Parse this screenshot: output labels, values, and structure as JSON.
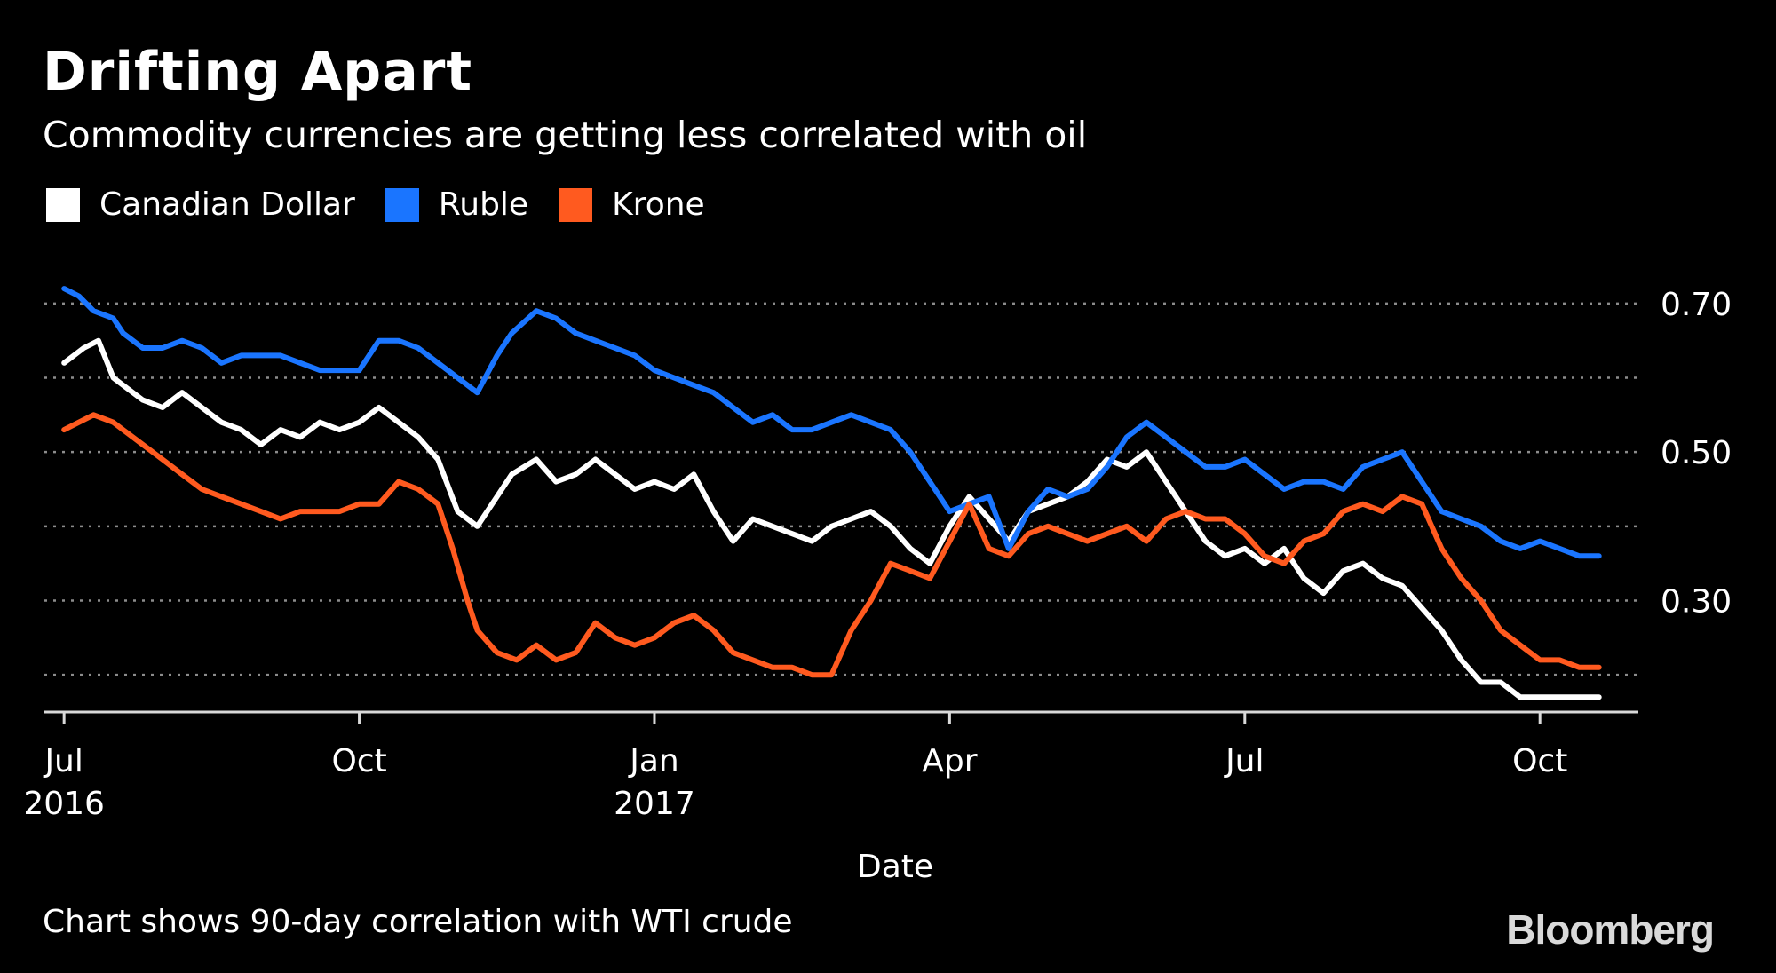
{
  "title": "Drifting Apart",
  "subtitle": "Commodity currencies are getting less correlated with oil",
  "footnote": "Chart shows 90-day correlation with WTI crude",
  "brand": "Bloomberg",
  "colors": {
    "background": "#000000",
    "cad": "#ffffff",
    "ruble": "#1a75ff",
    "krone": "#ff5a1f",
    "grid": "#8c8c8c"
  },
  "chart_data": {
    "type": "line",
    "title": "Drifting Apart",
    "subtitle": "Commodity currencies are getting less correlated with oil",
    "xlabel": "Date",
    "ylabel": "",
    "ylim": [
      0.15,
      0.75
    ],
    "xlim": [
      -0.2,
      16.0
    ],
    "yticks": [
      0.2,
      0.3,
      0.4,
      0.5,
      0.6,
      0.7
    ],
    "yticklabels": [
      {
        "value": 0.7,
        "label": "0.70"
      },
      {
        "value": 0.5,
        "label": "0.50"
      },
      {
        "value": 0.3,
        "label": "0.30"
      }
    ],
    "xticks": [
      {
        "pos": 0,
        "label": "Jul",
        "sub": "2016"
      },
      {
        "pos": 3,
        "label": "Oct",
        "sub": ""
      },
      {
        "pos": 6,
        "label": "Jan",
        "sub": "2017"
      },
      {
        "pos": 9,
        "label": "Apr",
        "sub": ""
      },
      {
        "pos": 12,
        "label": "Jul",
        "sub": ""
      },
      {
        "pos": 15,
        "label": "Oct",
        "sub": ""
      }
    ],
    "grid": "horizontal dotted",
    "legend_position": "top-left",
    "series": [
      {
        "name": "Canadian Dollar",
        "color": "#ffffff",
        "x": [
          0.0,
          0.2,
          0.35,
          0.5,
          0.6,
          0.8,
          1.0,
          1.2,
          1.4,
          1.6,
          1.8,
          2.0,
          2.2,
          2.4,
          2.6,
          2.8,
          3.0,
          3.2,
          3.4,
          3.6,
          3.8,
          4.0,
          4.2,
          4.4,
          4.55,
          4.8,
          5.0,
          5.2,
          5.4,
          5.6,
          5.8,
          6.0,
          6.2,
          6.4,
          6.6,
          6.8,
          7.0,
          7.2,
          7.4,
          7.6,
          7.8,
          8.0,
          8.2,
          8.4,
          8.6,
          8.8,
          9.0,
          9.2,
          9.4,
          9.6,
          9.8,
          10.0,
          10.2,
          10.4,
          10.6,
          10.8,
          11.0,
          11.2,
          11.4,
          11.6,
          11.8,
          12.0,
          12.2,
          12.4,
          12.6,
          12.8,
          13.0,
          13.2,
          13.4,
          13.6,
          13.8,
          14.0,
          14.2,
          14.4,
          14.6,
          14.8,
          15.0,
          15.2,
          15.4,
          15.6
        ],
        "values": [
          0.62,
          0.64,
          0.65,
          0.6,
          0.59,
          0.57,
          0.56,
          0.58,
          0.56,
          0.54,
          0.53,
          0.51,
          0.53,
          0.52,
          0.54,
          0.53,
          0.54,
          0.56,
          0.54,
          0.52,
          0.49,
          0.42,
          0.4,
          0.44,
          0.47,
          0.49,
          0.46,
          0.47,
          0.49,
          0.47,
          0.45,
          0.46,
          0.45,
          0.47,
          0.42,
          0.38,
          0.41,
          0.4,
          0.39,
          0.38,
          0.4,
          0.41,
          0.42,
          0.4,
          0.37,
          0.35,
          0.4,
          0.44,
          0.41,
          0.38,
          0.42,
          0.43,
          0.44,
          0.46,
          0.49,
          0.48,
          0.5,
          0.46,
          0.42,
          0.38,
          0.36,
          0.37,
          0.35,
          0.37,
          0.33,
          0.31,
          0.34,
          0.35,
          0.33,
          0.32,
          0.29,
          0.26,
          0.22,
          0.19,
          0.19,
          0.17,
          0.17,
          0.17,
          0.17,
          0.17
        ]
      },
      {
        "name": "Ruble",
        "color": "#1a75ff",
        "x": [
          0.0,
          0.15,
          0.3,
          0.5,
          0.6,
          0.8,
          1.0,
          1.2,
          1.4,
          1.6,
          1.8,
          2.0,
          2.2,
          2.4,
          2.6,
          2.8,
          3.0,
          3.2,
          3.4,
          3.6,
          3.8,
          4.0,
          4.2,
          4.4,
          4.55,
          4.8,
          5.0,
          5.2,
          5.4,
          5.6,
          5.8,
          6.0,
          6.2,
          6.4,
          6.6,
          6.8,
          7.0,
          7.2,
          7.4,
          7.6,
          7.8,
          8.0,
          8.2,
          8.4,
          8.6,
          8.8,
          9.0,
          9.2,
          9.4,
          9.6,
          9.8,
          10.0,
          10.2,
          10.4,
          10.6,
          10.8,
          11.0,
          11.2,
          11.4,
          11.6,
          11.8,
          12.0,
          12.2,
          12.4,
          12.6,
          12.8,
          13.0,
          13.2,
          13.4,
          13.6,
          13.8,
          14.0,
          14.2,
          14.4,
          14.6,
          14.8,
          15.0,
          15.2,
          15.4,
          15.6
        ],
        "values": [
          0.72,
          0.71,
          0.69,
          0.68,
          0.66,
          0.64,
          0.64,
          0.65,
          0.64,
          0.62,
          0.63,
          0.63,
          0.63,
          0.62,
          0.61,
          0.61,
          0.61,
          0.65,
          0.65,
          0.64,
          0.62,
          0.6,
          0.58,
          0.63,
          0.66,
          0.69,
          0.68,
          0.66,
          0.65,
          0.64,
          0.63,
          0.61,
          0.6,
          0.59,
          0.58,
          0.56,
          0.54,
          0.55,
          0.53,
          0.53,
          0.54,
          0.55,
          0.54,
          0.53,
          0.5,
          0.46,
          0.42,
          0.43,
          0.44,
          0.37,
          0.42,
          0.45,
          0.44,
          0.45,
          0.48,
          0.52,
          0.54,
          0.52,
          0.5,
          0.48,
          0.48,
          0.49,
          0.47,
          0.45,
          0.46,
          0.46,
          0.45,
          0.48,
          0.49,
          0.5,
          0.46,
          0.42,
          0.41,
          0.4,
          0.38,
          0.37,
          0.38,
          0.37,
          0.36,
          0.36
        ]
      },
      {
        "name": "Krone",
        "color": "#ff5a1f",
        "x": [
          0.0,
          0.15,
          0.3,
          0.5,
          0.6,
          0.8,
          1.0,
          1.2,
          1.4,
          1.6,
          1.8,
          2.0,
          2.2,
          2.4,
          2.6,
          2.8,
          3.0,
          3.2,
          3.4,
          3.6,
          3.8,
          3.95,
          4.1,
          4.2,
          4.4,
          4.6,
          4.8,
          5.0,
          5.2,
          5.4,
          5.6,
          5.8,
          6.0,
          6.2,
          6.4,
          6.6,
          6.8,
          7.0,
          7.2,
          7.4,
          7.6,
          7.8,
          8.0,
          8.2,
          8.4,
          8.6,
          8.8,
          9.0,
          9.2,
          9.4,
          9.6,
          9.8,
          10.0,
          10.2,
          10.4,
          10.6,
          10.8,
          11.0,
          11.2,
          11.4,
          11.6,
          11.8,
          12.0,
          12.2,
          12.4,
          12.6,
          12.8,
          13.0,
          13.2,
          13.4,
          13.6,
          13.8,
          14.0,
          14.2,
          14.4,
          14.6,
          14.8,
          15.0,
          15.2,
          15.4,
          15.6
        ],
        "values": [
          0.53,
          0.54,
          0.55,
          0.54,
          0.53,
          0.51,
          0.49,
          0.47,
          0.45,
          0.44,
          0.43,
          0.42,
          0.41,
          0.42,
          0.42,
          0.42,
          0.43,
          0.43,
          0.46,
          0.45,
          0.43,
          0.37,
          0.3,
          0.26,
          0.23,
          0.22,
          0.24,
          0.22,
          0.23,
          0.27,
          0.25,
          0.24,
          0.25,
          0.27,
          0.28,
          0.26,
          0.23,
          0.22,
          0.21,
          0.21,
          0.2,
          0.2,
          0.26,
          0.3,
          0.35,
          0.34,
          0.33,
          0.38,
          0.43,
          0.37,
          0.36,
          0.39,
          0.4,
          0.39,
          0.38,
          0.39,
          0.4,
          0.38,
          0.41,
          0.42,
          0.41,
          0.41,
          0.39,
          0.36,
          0.35,
          0.38,
          0.39,
          0.42,
          0.43,
          0.42,
          0.44,
          0.43,
          0.37,
          0.33,
          0.3,
          0.26,
          0.24,
          0.22,
          0.22,
          0.21,
          0.21
        ]
      }
    ]
  }
}
